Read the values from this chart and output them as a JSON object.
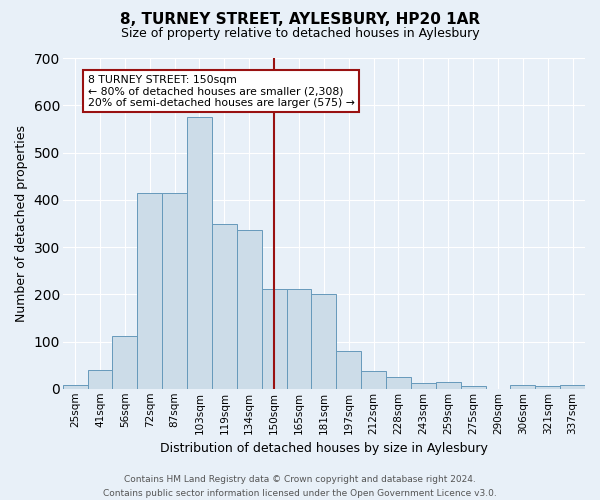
{
  "title": "8, TURNEY STREET, AYLESBURY, HP20 1AR",
  "subtitle": "Size of property relative to detached houses in Aylesbury",
  "xlabel": "Distribution of detached houses by size in Aylesbury",
  "ylabel": "Number of detached properties",
  "footer_line1": "Contains HM Land Registry data © Crown copyright and database right 2024.",
  "footer_line2": "Contains public sector information licensed under the Open Government Licence v3.0.",
  "bin_labels": [
    "25sqm",
    "41sqm",
    "56sqm",
    "72sqm",
    "87sqm",
    "103sqm",
    "119sqm",
    "134sqm",
    "150sqm",
    "165sqm",
    "181sqm",
    "197sqm",
    "212sqm",
    "228sqm",
    "243sqm",
    "259sqm",
    "275sqm",
    "290sqm",
    "306sqm",
    "321sqm",
    "337sqm"
  ],
  "bar_values": [
    8,
    40,
    112,
    414,
    415,
    575,
    348,
    335,
    212,
    211,
    201,
    80,
    37,
    24,
    13,
    14,
    5,
    0,
    8,
    5,
    8
  ],
  "bar_color": "#ccdce8",
  "bar_edgecolor": "#6699bb",
  "vline_x_index": 8,
  "vline_color": "#991111",
  "ylim": [
    0,
    700
  ],
  "yticks": [
    0,
    100,
    200,
    300,
    400,
    500,
    600,
    700
  ],
  "annotation_text": "8 TURNEY STREET: 150sqm\n← 80% of detached houses are smaller (2,308)\n20% of semi-detached houses are larger (575) →",
  "annotation_box_facecolor": "#ffffff",
  "annotation_box_edgecolor": "#991111",
  "bg_color": "#e8f0f8",
  "plot_bg_color": "#e8f0f8",
  "grid_color": "#ffffff",
  "title_fontsize": 11,
  "subtitle_fontsize": 9,
  "ylabel_fontsize": 9,
  "xlabel_fontsize": 9,
  "tick_fontsize": 7.5,
  "annotation_fontsize": 7.8,
  "footer_fontsize": 6.5
}
